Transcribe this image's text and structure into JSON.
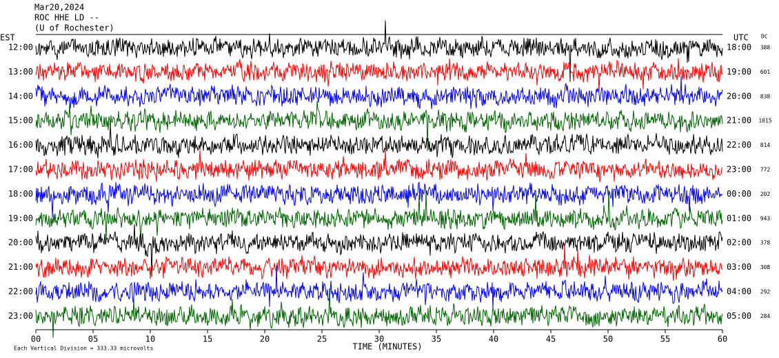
{
  "chart_data": {
    "type": "helicorder",
    "title": "Mar20,2024",
    "subtitle": "ROC HHE LD --",
    "station": "(U of Rochester)",
    "left_label": "EST",
    "right_label": "UTC",
    "dc_label": "DC",
    "x_label": "TIME (MINUTES)",
    "note": "Each Vertical Division = 333.33 microvolts",
    "xlim": [
      0,
      60
    ],
    "xticks": [
      {
        "value": 0,
        "label": "00"
      },
      {
        "value": 5,
        "label": "05"
      },
      10,
      15,
      20,
      25,
      30,
      35,
      40,
      45,
      50,
      55,
      60
    ],
    "colors": [
      "#000000",
      "#ff0000",
      "#0000ff",
      "#006400"
    ],
    "rows": [
      {
        "est": "12:00",
        "utc": "18:00",
        "dc": 388
      },
      {
        "est": "13:00",
        "utc": "19:00",
        "dc": 601
      },
      {
        "est": "14:00",
        "utc": "20:00",
        "dc": 838
      },
      {
        "est": "15:00",
        "utc": "21:00",
        "dc": 1015
      },
      {
        "est": "16:00",
        "utc": "22:00",
        "dc": 814
      },
      {
        "est": "17:00",
        "utc": "23:00",
        "dc": 772
      },
      {
        "est": "18:00",
        "utc": "00:00",
        "dc": 202
      },
      {
        "est": "19:00",
        "utc": "01:00",
        "dc": 943
      },
      {
        "est": "20:00",
        "utc": "02:00",
        "dc": 378
      },
      {
        "est": "21:00",
        "utc": "03:00",
        "dc": 308
      },
      {
        "est": "22:00",
        "utc": "04:00",
        "dc": 292
      },
      {
        "est": "23:00",
        "utc": "05:00",
        "dc": 284
      }
    ]
  }
}
